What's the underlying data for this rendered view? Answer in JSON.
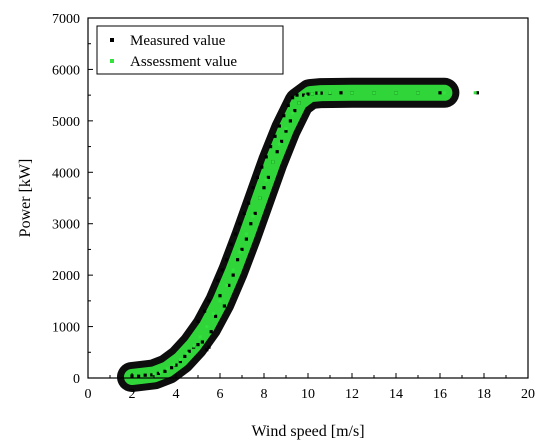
{
  "chart_data": {
    "type": "scatter",
    "title": "",
    "xlabel": "Wind speed [m/s]",
    "ylabel": "Power [kW]",
    "xlim": [
      0,
      20
    ],
    "ylim": [
      0,
      7000
    ],
    "xticks": [
      0,
      2,
      4,
      6,
      8,
      10,
      12,
      14,
      16,
      18,
      20
    ],
    "yticks": [
      0,
      1000,
      2000,
      3000,
      4000,
      5000,
      6000,
      7000
    ],
    "grid": false,
    "legend_position": "top-left",
    "series": [
      {
        "name": "Measured value",
        "color": "#000000",
        "points": [
          [
            2.0,
            40
          ],
          [
            2.3,
            35
          ],
          [
            2.6,
            55
          ],
          [
            2.9,
            60
          ],
          [
            3.2,
            90
          ],
          [
            3.5,
            130
          ],
          [
            3.8,
            200
          ],
          [
            4.0,
            250
          ],
          [
            4.2,
            320
          ],
          [
            4.4,
            420
          ],
          [
            4.6,
            520
          ],
          [
            4.8,
            600
          ],
          [
            5.0,
            650
          ],
          [
            5.2,
            700
          ],
          [
            5.4,
            550
          ],
          [
            5.5,
            600
          ],
          [
            5.0,
            1100
          ],
          [
            5.3,
            1300
          ],
          [
            5.5,
            1500
          ],
          [
            5.6,
            900
          ],
          [
            5.8,
            1200
          ],
          [
            5.9,
            1900
          ],
          [
            6.0,
            1600
          ],
          [
            6.1,
            2100
          ],
          [
            6.2,
            1400
          ],
          [
            6.3,
            2300
          ],
          [
            6.4,
            1800
          ],
          [
            6.5,
            2600
          ],
          [
            6.6,
            2000
          ],
          [
            6.7,
            2800
          ],
          [
            6.8,
            2300
          ],
          [
            6.9,
            3000
          ],
          [
            7.0,
            2500
          ],
          [
            7.1,
            3200
          ],
          [
            7.2,
            2700
          ],
          [
            7.3,
            3400
          ],
          [
            7.4,
            3000
          ],
          [
            7.5,
            3700
          ],
          [
            7.6,
            3200
          ],
          [
            7.7,
            3900
          ],
          [
            7.8,
            3500
          ],
          [
            7.9,
            4100
          ],
          [
            8.0,
            3700
          ],
          [
            8.1,
            4300
          ],
          [
            8.2,
            3900
          ],
          [
            8.3,
            4500
          ],
          [
            8.4,
            4200
          ],
          [
            8.5,
            4700
          ],
          [
            8.6,
            4400
          ],
          [
            8.7,
            4900
          ],
          [
            8.8,
            4600
          ],
          [
            8.9,
            5100
          ],
          [
            9.0,
            4800
          ],
          [
            9.1,
            5300
          ],
          [
            9.2,
            5000
          ],
          [
            9.3,
            5450
          ],
          [
            9.4,
            5200
          ],
          [
            9.5,
            5500
          ],
          [
            9.6,
            5350
          ],
          [
            9.8,
            5500
          ],
          [
            10.0,
            5520
          ],
          [
            10.2,
            5530
          ],
          [
            10.4,
            5540
          ],
          [
            10.6,
            5540
          ],
          [
            11.0,
            5540
          ],
          [
            11.5,
            5545
          ],
          [
            12.0,
            5545
          ],
          [
            13.0,
            5545
          ],
          [
            14.0,
            5545
          ],
          [
            15.0,
            5545
          ],
          [
            16.0,
            5545
          ],
          [
            17.7,
            5545
          ]
        ]
      },
      {
        "name": "Assessment value",
        "color": "#33e23c",
        "points": [
          [
            3.0,
            80
          ],
          [
            3.3,
            120
          ],
          [
            3.6,
            180
          ],
          [
            3.9,
            260
          ],
          [
            4.2,
            360
          ],
          [
            4.5,
            480
          ],
          [
            4.8,
            620
          ],
          [
            5.1,
            800
          ],
          [
            5.4,
            1000
          ],
          [
            5.7,
            1250
          ],
          [
            6.0,
            1500
          ],
          [
            6.3,
            1800
          ],
          [
            6.6,
            2100
          ],
          [
            6.9,
            2450
          ],
          [
            7.2,
            2800
          ],
          [
            7.5,
            3150
          ],
          [
            7.8,
            3500
          ],
          [
            8.1,
            3850
          ],
          [
            8.4,
            4200
          ],
          [
            8.7,
            4550
          ],
          [
            9.0,
            4850
          ],
          [
            9.3,
            5150
          ],
          [
            9.6,
            5350
          ],
          [
            9.9,
            5480
          ],
          [
            10.2,
            5530
          ],
          [
            10.5,
            5540
          ],
          [
            11.0,
            5545
          ],
          [
            12.0,
            5545
          ],
          [
            13.0,
            5545
          ],
          [
            14.0,
            5545
          ],
          [
            15.0,
            5545
          ],
          [
            16.2,
            5545
          ],
          [
            17.6,
            5545
          ]
        ]
      }
    ]
  }
}
